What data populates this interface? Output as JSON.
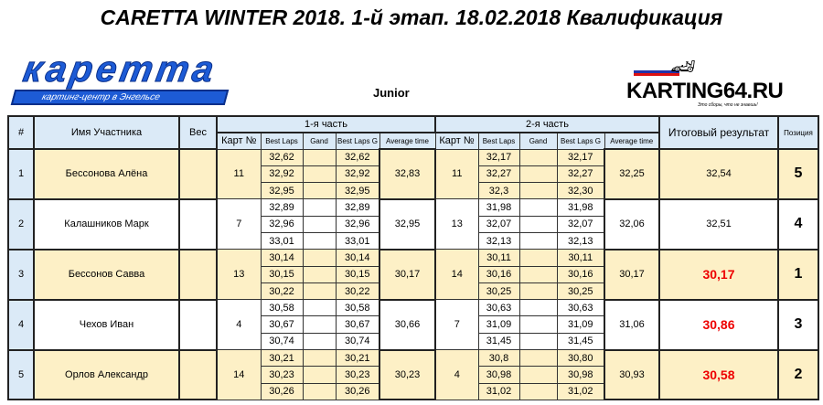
{
  "title": "CARETTA WINTER 2018. 1-й этап. 18.02.2018 Квалификация",
  "logo_left": {
    "main": "карeтта",
    "sub": "картинг-центр в Энгельсе"
  },
  "category": "Junior",
  "logo_right": {
    "name": "KARTING64.RU",
    "slogan": "Это сборы, что не знаешь!"
  },
  "headers": {
    "num": "#",
    "name": "Имя Участника",
    "weight": "Вес",
    "part1": "1-я часть",
    "part2": "2-я часть",
    "kart": "Карт №",
    "best_laps": "Best Laps",
    "gand": "Gand",
    "best_laps_g": "Best Laps G",
    "avg": "Average time",
    "result": "Итоговый результат",
    "position": "Позиция"
  },
  "rows": [
    {
      "num": "1",
      "name": "Бессонова Алёна",
      "weight": "",
      "p1": {
        "kart": "11",
        "laps": [
          "32,62",
          "32,92",
          "32,95"
        ],
        "lapsg": [
          "32,62",
          "32,92",
          "32,95"
        ],
        "avg": "32,83"
      },
      "p2": {
        "kart": "11",
        "laps": [
          "32,17",
          "32,27",
          "32,3"
        ],
        "lapsg": [
          "32,17",
          "32,27",
          "32,30"
        ],
        "avg": "32,25"
      },
      "result": "32,54",
      "highlight": false,
      "position": "5"
    },
    {
      "num": "2",
      "name": "Калашников Марк",
      "weight": "",
      "p1": {
        "kart": "7",
        "laps": [
          "32,89",
          "32,96",
          "33,01"
        ],
        "lapsg": [
          "32,89",
          "32,96",
          "33,01"
        ],
        "avg": "32,95"
      },
      "p2": {
        "kart": "13",
        "laps": [
          "31,98",
          "32,07",
          "32,13"
        ],
        "lapsg": [
          "31,98",
          "32,07",
          "32,13"
        ],
        "avg": "32,06"
      },
      "result": "32,51",
      "highlight": false,
      "position": "4"
    },
    {
      "num": "3",
      "name": "Бессонов Савва",
      "weight": "",
      "p1": {
        "kart": "13",
        "laps": [
          "30,14",
          "30,15",
          "30,22"
        ],
        "lapsg": [
          "30,14",
          "30,15",
          "30,22"
        ],
        "avg": "30,17"
      },
      "p2": {
        "kart": "14",
        "laps": [
          "30,11",
          "30,16",
          "30,25"
        ],
        "lapsg": [
          "30,11",
          "30,16",
          "30,25"
        ],
        "avg": "30,17"
      },
      "result": "30,17",
      "highlight": true,
      "position": "1"
    },
    {
      "num": "4",
      "name": "Чехов Иван",
      "weight": "",
      "p1": {
        "kart": "4",
        "laps": [
          "30,58",
          "30,67",
          "30,74"
        ],
        "lapsg": [
          "30,58",
          "30,67",
          "30,74"
        ],
        "avg": "30,66"
      },
      "p2": {
        "kart": "7",
        "laps": [
          "30,63",
          "31,09",
          "31,45"
        ],
        "lapsg": [
          "30,63",
          "31,09",
          "31,45"
        ],
        "avg": "31,06"
      },
      "result": "30,86",
      "highlight": true,
      "position": "3"
    },
    {
      "num": "5",
      "name": "Орлов Александр",
      "weight": "",
      "p1": {
        "kart": "14",
        "laps": [
          "30,21",
          "30,23",
          "30,26"
        ],
        "lapsg": [
          "30,21",
          "30,23",
          "30,26"
        ],
        "avg": "30,23"
      },
      "p2": {
        "kart": "4",
        "laps": [
          "30,8",
          "30,98",
          "31,02"
        ],
        "lapsg": [
          "30,80",
          "30,98",
          "31,02"
        ],
        "avg": "30,93"
      },
      "result": "30,58",
      "highlight": true,
      "position": "2"
    }
  ]
}
